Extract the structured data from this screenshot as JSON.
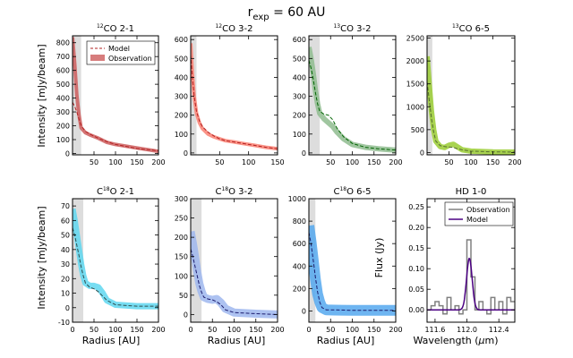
{
  "figure": {
    "title_main": "r",
    "title_sub": "exp",
    "title_rest": " = 60 AU"
  },
  "axis_labels": {
    "ylabel_intensity": "Intensity [mJy/beam]",
    "ylabel_flux": "Flux (Jy)",
    "xlabel_radius": "Radius [AU]",
    "xlabel_wavelength_pre": "Wavelength (",
    "xlabel_wavelength_mu": "μ",
    "xlabel_wavelength_post": "m)"
  },
  "colors": {
    "model_line": "#b22222",
    "shade": "#dddddd",
    "hd_observation": "#808080",
    "hd_model": "#4b0082"
  },
  "chart_data": [
    {
      "type": "line",
      "title_sup": "12",
      "title_main": "CO 2-1",
      "xlim": [
        0,
        200
      ],
      "ylim": [
        -10,
        850
      ],
      "xticks": [
        50,
        100,
        150,
        200
      ],
      "yticks": [
        0,
        100,
        200,
        300,
        400,
        500,
        600,
        700,
        800
      ],
      "shade_xmax": 20,
      "band_color": "#cd5c5c",
      "band_width": 4,
      "model_color": "#b22222",
      "legend": {
        "model": "Model",
        "observation": "Observation",
        "position": "top-right"
      },
      "observation": {
        "x": [
          0,
          5,
          10,
          15,
          20,
          30,
          40,
          60,
          80,
          100,
          150,
          200
        ],
        "y": [
          840,
          650,
          420,
          280,
          185,
          150,
          135,
          110,
          80,
          65,
          40,
          15
        ]
      },
      "model": {
        "x": [
          0,
          5,
          10,
          15,
          20,
          30,
          40,
          60,
          80,
          100,
          150,
          200
        ],
        "y": [
          370,
          340,
          300,
          250,
          200,
          160,
          140,
          110,
          85,
          65,
          35,
          20
        ]
      }
    },
    {
      "type": "line",
      "title_sup": "12",
      "title_main": "CO 3-2",
      "xlim": [
        0,
        150
      ],
      "ylim": [
        -10,
        620
      ],
      "xticks": [
        50,
        100,
        150
      ],
      "yticks": [
        0,
        100,
        200,
        300,
        400,
        500,
        600
      ],
      "shade_xmax": 10,
      "band_color": "#fa8072",
      "band_width": 4,
      "model_color": "#b22222",
      "observation": {
        "x": [
          0,
          3,
          6,
          10,
          15,
          20,
          30,
          40,
          50,
          60,
          75,
          90,
          110,
          130,
          150
        ],
        "y": [
          580,
          420,
          300,
          210,
          160,
          130,
          100,
          85,
          75,
          65,
          58,
          50,
          40,
          30,
          22
        ]
      },
      "model": {
        "x": [
          0,
          3,
          6,
          10,
          15,
          20,
          30,
          40,
          50,
          60,
          75,
          90,
          110,
          130,
          150
        ],
        "y": [
          520,
          400,
          300,
          220,
          170,
          140,
          110,
          90,
          75,
          65,
          58,
          50,
          40,
          30,
          22
        ]
      }
    },
    {
      "type": "line",
      "title_sup": "13",
      "title_main": "CO 3-2",
      "xlim": [
        0,
        200
      ],
      "ylim": [
        -10,
        620
      ],
      "xticks": [
        50,
        100,
        150,
        200
      ],
      "yticks": [
        0,
        100,
        200,
        300,
        400,
        500,
        600
      ],
      "shade_xmax": 25,
      "band_color": "#8fbc8f",
      "band_width": 6,
      "model_color": "#006400",
      "observation": {
        "x": [
          0,
          5,
          10,
          15,
          20,
          25,
          35,
          45,
          55,
          65,
          80,
          100,
          130,
          160,
          200
        ],
        "y": [
          560,
          500,
          420,
          330,
          260,
          210,
          180,
          160,
          140,
          110,
          75,
          45,
          30,
          22,
          15
        ]
      },
      "model": {
        "x": [
          0,
          5,
          10,
          15,
          20,
          25,
          35,
          45,
          55,
          65,
          80,
          100,
          130,
          160,
          200
        ],
        "y": [
          490,
          450,
          390,
          320,
          260,
          220,
          205,
          200,
          175,
          130,
          85,
          50,
          30,
          22,
          15
        ]
      }
    },
    {
      "type": "line",
      "title_sup": "13",
      "title_main": "CO 6-5",
      "xlim": [
        0,
        200
      ],
      "ylim": [
        -50,
        2550
      ],
      "xticks": [
        50,
        100,
        150,
        200
      ],
      "yticks": [
        0,
        500,
        1000,
        1500,
        2000,
        2500
      ],
      "shade_xmax": 12,
      "band_color": "#9acd32",
      "band_width": 6,
      "model_color": "#556b2f",
      "observation": {
        "x": [
          0,
          5,
          10,
          15,
          20,
          30,
          40,
          50,
          60,
          70,
          80,
          100,
          150,
          200
        ],
        "y": [
          2100,
          1500,
          900,
          500,
          250,
          130,
          110,
          160,
          180,
          120,
          60,
          30,
          15,
          10
        ]
      },
      "model": {
        "x": [
          0,
          5,
          10,
          15,
          20,
          30,
          40,
          50,
          60,
          70,
          80,
          100,
          150,
          200
        ],
        "y": [
          1550,
          1150,
          750,
          450,
          250,
          150,
          130,
          120,
          110,
          80,
          60,
          30,
          15,
          10
        ]
      }
    },
    {
      "type": "line",
      "title_sup": "18",
      "title_main": "C O 2-1",
      "xlim": [
        0,
        200
      ],
      "ylim": [
        -10,
        75
      ],
      "xticks": [
        0,
        50,
        100,
        150,
        200
      ],
      "yticks": [
        -10,
        0,
        10,
        20,
        30,
        40,
        50,
        60,
        70
      ],
      "shade_xmax": 25,
      "band_color": "#5fd7f0",
      "band_width": 7,
      "model_color": "#2f4f4f",
      "observation": {
        "x": [
          0,
          5,
          10,
          15,
          20,
          25,
          30,
          40,
          50,
          60,
          70,
          80,
          100,
          150,
          200
        ],
        "y": [
          68,
          60,
          50,
          40,
          30,
          22,
          17,
          15,
          15,
          14,
          10,
          5,
          2,
          1,
          1
        ]
      },
      "model": {
        "x": [
          0,
          5,
          10,
          15,
          20,
          25,
          30,
          40,
          50,
          60,
          70,
          80,
          100,
          150,
          200
        ],
        "y": [
          55,
          50,
          43,
          36,
          28,
          22,
          17,
          14,
          13,
          11,
          8,
          5,
          2,
          1,
          1
        ]
      }
    },
    {
      "type": "line",
      "title_sup": "18",
      "title_main": "C O 3-2",
      "xlim": [
        0,
        200
      ],
      "ylim": [
        -20,
        300
      ],
      "xticks": [
        0,
        50,
        100,
        150,
        200
      ],
      "yticks": [
        0,
        50,
        100,
        150,
        200,
        250,
        300
      ],
      "shade_xmax": 25,
      "band_color": "#9fb7ee",
      "band_width": 9,
      "model_color": "#1c1c6e",
      "observation": {
        "x": [
          0,
          5,
          10,
          15,
          20,
          25,
          30,
          40,
          50,
          60,
          70,
          80,
          100,
          150,
          200
        ],
        "y": [
          215,
          185,
          150,
          110,
          80,
          60,
          45,
          40,
          38,
          40,
          30,
          15,
          5,
          2,
          0
        ]
      },
      "model": {
        "x": [
          0,
          5,
          10,
          15,
          20,
          25,
          30,
          40,
          50,
          60,
          70,
          80,
          100,
          150,
          200
        ],
        "y": [
          170,
          150,
          125,
          100,
          75,
          58,
          45,
          40,
          38,
          33,
          25,
          12,
          5,
          2,
          0
        ]
      }
    },
    {
      "type": "line",
      "title_sup": "18",
      "title_main": "C O 6-5",
      "xlim": [
        0,
        200
      ],
      "ylim": [
        -100,
        1000
      ],
      "xticks": [
        0,
        50,
        100,
        150,
        200
      ],
      "yticks": [
        0,
        200,
        400,
        600,
        800,
        1000
      ],
      "shade_xmax": 15,
      "band_color": "#55a8ee",
      "band_width": 12,
      "model_color": "#1c1c6e",
      "observation": {
        "x": [
          0,
          5,
          10,
          15,
          20,
          25,
          30,
          40,
          60,
          100,
          150,
          200
        ],
        "y": [
          760,
          620,
          450,
          280,
          150,
          80,
          30,
          10,
          8,
          5,
          5,
          5
        ]
      },
      "model": {
        "x": [
          0,
          5,
          10,
          15,
          20,
          25,
          30,
          40,
          60,
          100,
          150,
          200
        ],
        "y": [
          700,
          600,
          450,
          300,
          170,
          80,
          30,
          10,
          10,
          5,
          5,
          5
        ]
      }
    },
    {
      "type": "line",
      "title_sup": "",
      "title_main": "HD 1-0",
      "xlim": [
        111.5,
        112.6
      ],
      "ylim": [
        -0.03,
        0.27
      ],
      "xticks": [
        111.6,
        112.0,
        112.4
      ],
      "yticks": [
        0.0,
        0.05,
        0.1,
        0.15,
        0.2,
        0.25
      ],
      "tick_decimals": 2,
      "xtick_decimals": 1,
      "legend": {
        "observation": "Observation",
        "model": "Model",
        "position": "top-right"
      },
      "observation_steps": {
        "edges": [
          111.5,
          111.55,
          111.6,
          111.65,
          111.7,
          111.75,
          111.8,
          111.85,
          111.9,
          111.95,
          112.0,
          112.05,
          112.1,
          112.15,
          112.2,
          112.25,
          112.3,
          112.35,
          112.4,
          112.45,
          112.5,
          112.55,
          112.6
        ],
        "values": [
          0.0,
          0.01,
          0.02,
          0.01,
          -0.01,
          0.03,
          0.0,
          0.01,
          -0.01,
          0.0,
          0.17,
          0.08,
          0.0,
          0.02,
          0.0,
          -0.01,
          0.03,
          0.0,
          0.02,
          -0.01,
          0.03,
          0.02
        ]
      },
      "model_gaussian": {
        "center": 112.03,
        "sigma": 0.035,
        "amplitude": 0.125
      }
    }
  ]
}
